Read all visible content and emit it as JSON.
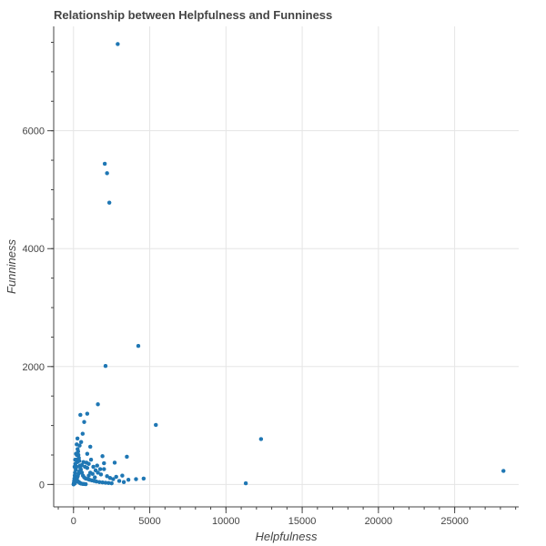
{
  "chart_data": {
    "type": "scatter",
    "title": "Relationship between Helpfulness and Funniness",
    "xlabel": "Helpfulness",
    "ylabel": "Funniness",
    "xlim": [
      -1300,
      29200
    ],
    "ylim": [
      -380,
      7770
    ],
    "x_ticks": [
      0,
      5000,
      10000,
      15000,
      20000,
      25000
    ],
    "y_ticks": [
      0,
      2000,
      4000,
      6000
    ],
    "x_tick_labels": [
      "0",
      "5000",
      "10000",
      "15000",
      "20000",
      "25000"
    ],
    "y_tick_labels": [
      "0",
      "2000",
      "4000",
      "6000"
    ],
    "grid": true,
    "marker_color": "#1f77b4",
    "points": [
      [
        2900,
        7470
      ],
      [
        2050,
        5440
      ],
      [
        2200,
        5280
      ],
      [
        2350,
        4780
      ],
      [
        4250,
        2350
      ],
      [
        2100,
        2010
      ],
      [
        1600,
        1360
      ],
      [
        5400,
        1010
      ],
      [
        450,
        1180
      ],
      [
        900,
        1200
      ],
      [
        700,
        1060
      ],
      [
        12300,
        770
      ],
      [
        28200,
        230
      ],
      [
        11300,
        20
      ],
      [
        3500,
        470
      ],
      [
        4600,
        100
      ],
      [
        4100,
        90
      ],
      [
        3200,
        150
      ],
      [
        2700,
        370
      ],
      [
        1100,
        640
      ],
      [
        900,
        520
      ],
      [
        850,
        370
      ],
      [
        600,
        860
      ],
      [
        500,
        720
      ],
      [
        400,
        660
      ],
      [
        300,
        560
      ],
      [
        350,
        450
      ],
      [
        250,
        380
      ],
      [
        200,
        300
      ],
      [
        150,
        250
      ],
      [
        100,
        200
      ],
      [
        80,
        150
      ],
      [
        60,
        100
      ],
      [
        40,
        60
      ],
      [
        30,
        30
      ],
      [
        20,
        10
      ],
      [
        10,
        5
      ],
      [
        5,
        2
      ],
      [
        120,
        350
      ],
      [
        180,
        420
      ],
      [
        220,
        500
      ],
      [
        270,
        600
      ],
      [
        320,
        500
      ],
      [
        380,
        400
      ],
      [
        420,
        320
      ],
      [
        480,
        250
      ],
      [
        550,
        200
      ],
      [
        620,
        150
      ],
      [
        700,
        120
      ],
      [
        800,
        100
      ],
      [
        950,
        90
      ],
      [
        1050,
        80
      ],
      [
        1200,
        70
      ],
      [
        1350,
        60
      ],
      [
        1500,
        50
      ],
      [
        1700,
        40
      ],
      [
        1900,
        35
      ],
      [
        2100,
        30
      ],
      [
        2300,
        25
      ],
      [
        2500,
        20
      ],
      [
        150,
        100
      ],
      [
        200,
        80
      ],
      [
        250,
        60
      ],
      [
        300,
        50
      ],
      [
        350,
        40
      ],
      [
        400,
        30
      ],
      [
        450,
        20
      ],
      [
        500,
        15
      ],
      [
        600,
        10
      ],
      [
        700,
        8
      ],
      [
        800,
        5
      ],
      [
        1000,
        150
      ],
      [
        1100,
        200
      ],
      [
        1250,
        180
      ],
      [
        1400,
        120
      ],
      [
        1600,
        200
      ],
      [
        1800,
        170
      ],
      [
        2000,
        260
      ],
      [
        2200,
        140
      ],
      [
        2400,
        110
      ],
      [
        2600,
        90
      ],
      [
        2800,
        130
      ],
      [
        3000,
        60
      ],
      [
        3300,
        40
      ],
      [
        3600,
        80
      ],
      [
        900,
        280
      ],
      [
        1000,
        350
      ],
      [
        1300,
        300
      ],
      [
        1150,
        420
      ],
      [
        750,
        300
      ],
      [
        650,
        380
      ],
      [
        550,
        330
      ],
      [
        450,
        280
      ],
      [
        380,
        220
      ],
      [
        330,
        180
      ],
      [
        280,
        140
      ],
      [
        230,
        110
      ],
      [
        170,
        70
      ],
      [
        130,
        40
      ],
      [
        90,
        20
      ],
      [
        70,
        300
      ],
      [
        110,
        420
      ],
      [
        160,
        520
      ],
      [
        210,
        680
      ],
      [
        260,
        780
      ],
      [
        1900,
        480
      ],
      [
        2000,
        360
      ],
      [
        1750,
        260
      ],
      [
        1550,
        320
      ],
      [
        1450,
        240
      ]
    ]
  }
}
